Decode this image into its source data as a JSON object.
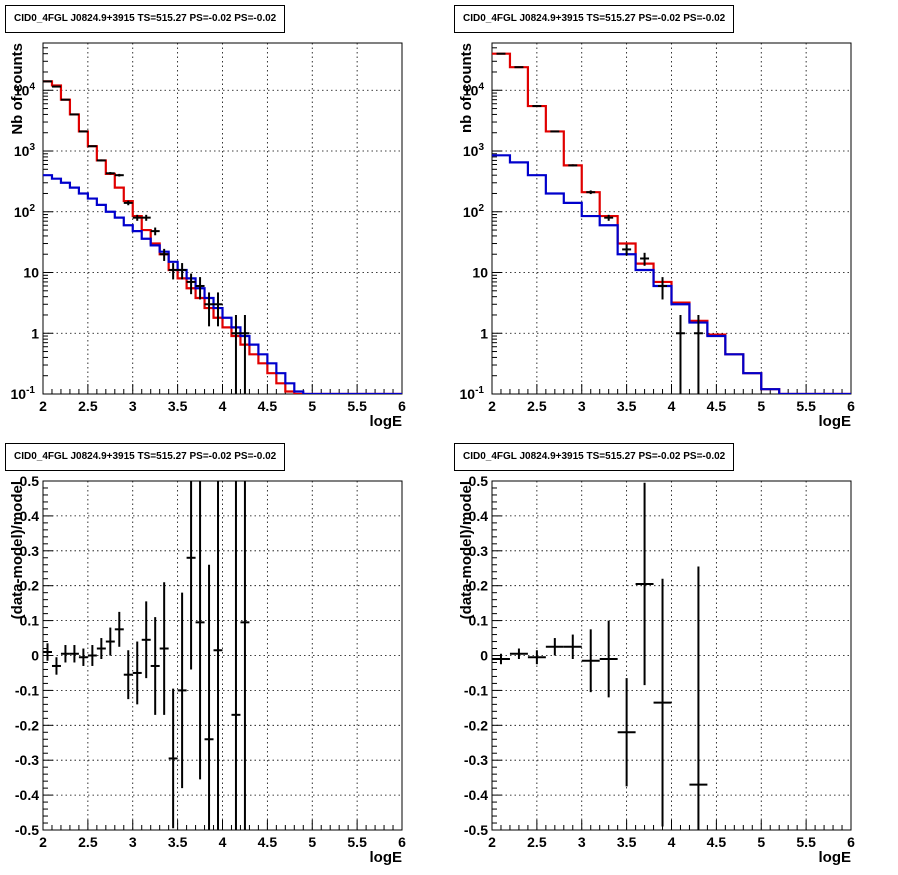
{
  "chart_data": [
    {
      "type": "line",
      "title": "CID0_4FGL J0824.9+3915 TS=515.27 PS=-0.02 PS=-0.02",
      "xlabel": "logE",
      "ylabel": "Nb of counts",
      "xlim": [
        2,
        6
      ],
      "ylim": [
        0.1,
        60000
      ],
      "yscale": "log",
      "grid": true,
      "x_ticks": [
        "2",
        "2.5",
        "3",
        "3.5",
        "4",
        "4.5",
        "5",
        "5.5",
        "6"
      ],
      "y_ticks": [
        "10^-1",
        "1",
        "10",
        "10^2",
        "10^3",
        "10^4"
      ],
      "series": [
        {
          "color": "#e00000",
          "kind": "step",
          "edges": [
            2.0,
            2.1,
            2.2,
            2.3,
            2.4,
            2.5,
            2.6,
            2.7,
            2.8,
            2.9,
            3.0,
            3.1,
            3.2,
            3.3,
            3.4,
            3.5,
            3.6,
            3.7,
            3.8,
            3.9,
            4.0,
            4.1,
            4.2,
            4.3,
            4.4,
            4.5,
            4.6,
            4.7,
            4.8,
            4.9,
            5.0,
            5.1,
            5.2,
            5.3,
            5.4,
            5.5,
            5.6,
            5.7,
            5.8,
            5.9,
            6.0
          ],
          "values": [
            14000,
            12000,
            7000,
            4000,
            2100,
            1200,
            700,
            420,
            250,
            150,
            85,
            50,
            30,
            20,
            11,
            8,
            5.5,
            3.8,
            2.6,
            1.8,
            1.25,
            0.9,
            0.65,
            0.45,
            0.32,
            0.22,
            0.15,
            0.11,
            0.1,
            0.1,
            0.1,
            0.1,
            0.1,
            0.1,
            0.1,
            0.1,
            0.1,
            0.1,
            0.1,
            0.1
          ]
        },
        {
          "color": "#0000cc",
          "kind": "step",
          "edges": [
            2.0,
            2.1,
            2.2,
            2.3,
            2.4,
            2.5,
            2.6,
            2.7,
            2.8,
            2.9,
            3.0,
            3.1,
            3.2,
            3.3,
            3.4,
            3.5,
            3.6,
            3.7,
            3.8,
            3.9,
            4.0,
            4.1,
            4.2,
            4.3,
            4.4,
            4.5,
            4.6,
            4.7,
            4.8,
            4.9,
            5.0,
            5.1,
            5.2,
            5.3,
            5.4,
            5.5,
            5.6,
            5.7,
            5.8,
            5.9,
            6.0
          ],
          "values": [
            400,
            350,
            300,
            250,
            200,
            165,
            130,
            100,
            80,
            60,
            48,
            36,
            28,
            22,
            15,
            11,
            8,
            5.5,
            3.8,
            2.6,
            1.8,
            1.25,
            0.9,
            0.65,
            0.45,
            0.32,
            0.22,
            0.15,
            0.11,
            0.1,
            0.1,
            0.1,
            0.1,
            0.1,
            0.1,
            0.1,
            0.1,
            0.1,
            0.1,
            0.1
          ]
        },
        {
          "color": "#000000",
          "kind": "points",
          "points": [
            {
              "x": 2.05,
              "y": 14000,
              "yerr_lo": 120,
              "yerr_hi": 120
            },
            {
              "x": 2.15,
              "y": 11500,
              "yerr_lo": 110,
              "yerr_hi": 110
            },
            {
              "x": 2.25,
              "y": 7000,
              "yerr_lo": 85,
              "yerr_hi": 85
            },
            {
              "x": 2.35,
              "y": 4000,
              "yerr_lo": 65,
              "yerr_hi": 65
            },
            {
              "x": 2.45,
              "y": 2100,
              "yerr_lo": 46,
              "yerr_hi": 46
            },
            {
              "x": 2.55,
              "y": 1200,
              "yerr_lo": 35,
              "yerr_hi": 35
            },
            {
              "x": 2.65,
              "y": 700,
              "yerr_lo": 27,
              "yerr_hi": 27
            },
            {
              "x": 2.75,
              "y": 430,
              "yerr_lo": 21,
              "yerr_hi": 21
            },
            {
              "x": 2.85,
              "y": 400,
              "yerr_lo": 20,
              "yerr_hi": 20
            },
            {
              "x": 2.95,
              "y": 140,
              "yerr_lo": 12,
              "yerr_hi": 12
            },
            {
              "x": 3.05,
              "y": 80,
              "yerr_lo": 9,
              "yerr_hi": 9
            },
            {
              "x": 3.15,
              "y": 80,
              "yerr_lo": 9,
              "yerr_hi": 9
            },
            {
              "x": 3.25,
              "y": 48,
              "yerr_lo": 7,
              "yerr_hi": 7
            },
            {
              "x": 3.35,
              "y": 20,
              "yerr_lo": 4.5,
              "yerr_hi": 4.5
            },
            {
              "x": 3.45,
              "y": 11,
              "yerr_lo": 3.3,
              "yerr_hi": 3.3
            },
            {
              "x": 3.55,
              "y": 11,
              "yerr_lo": 3.3,
              "yerr_hi": 3.3
            },
            {
              "x": 3.65,
              "y": 7,
              "yerr_lo": 2.6,
              "yerr_hi": 2.6
            },
            {
              "x": 3.75,
              "y": 6,
              "yerr_lo": 2.4,
              "yerr_hi": 2.4
            },
            {
              "x": 3.85,
              "y": 3,
              "yerr_lo": 1.7,
              "yerr_hi": 1.7
            },
            {
              "x": 3.95,
              "y": 3,
              "yerr_lo": 1.7,
              "yerr_hi": 1.7
            },
            {
              "x": 4.15,
              "y": 1,
              "yerr_lo": 0.999,
              "yerr_hi": 1.0
            },
            {
              "x": 4.25,
              "y": 1,
              "yerr_lo": 0.999,
              "yerr_hi": 1.0
            }
          ]
        }
      ]
    },
    {
      "type": "line",
      "title": "CID0_4FGL J0824.9+3915 TS=515.27 PS=-0.02 PS=-0.02",
      "xlabel": "logE",
      "ylabel": "nb of counts",
      "xlim": [
        2,
        6
      ],
      "ylim": [
        0.1,
        60000
      ],
      "yscale": "log",
      "grid": true,
      "x_ticks": [
        "2",
        "2.5",
        "3",
        "3.5",
        "4",
        "4.5",
        "5",
        "5.5",
        "6"
      ],
      "y_ticks": [
        "10^-1",
        "1",
        "10",
        "10^2",
        "10^3",
        "10^4"
      ],
      "series": [
        {
          "color": "#e00000",
          "kind": "step",
          "edges": [
            2.0,
            2.2,
            2.4,
            2.6,
            2.8,
            3.0,
            3.2,
            3.4,
            3.6,
            3.8,
            4.0,
            4.2,
            4.4,
            4.6,
            4.8,
            5.0,
            5.2,
            5.4,
            5.6,
            5.8,
            6.0
          ],
          "values": [
            40000,
            24000,
            5500,
            2100,
            580,
            210,
            85,
            30,
            14,
            7,
            3.2,
            1.6,
            0.95,
            0.45,
            0.22,
            0.12,
            0.1,
            0.1,
            0.1,
            0.1
          ]
        },
        {
          "color": "#0000cc",
          "kind": "step",
          "edges": [
            2.0,
            2.2,
            2.4,
            2.6,
            2.8,
            3.0,
            3.2,
            3.4,
            3.6,
            3.8,
            4.0,
            4.2,
            4.4,
            4.6,
            4.8,
            5.0,
            5.2,
            5.4,
            5.6,
            5.8,
            6.0
          ],
          "values": [
            850,
            650,
            400,
            200,
            140,
            85,
            60,
            20,
            11,
            6,
            3,
            1.5,
            0.9,
            0.45,
            0.22,
            0.12,
            0.1,
            0.1,
            0.1,
            0.1
          ]
        },
        {
          "color": "#000000",
          "kind": "points",
          "points": [
            {
              "x": 2.1,
              "y": 40000,
              "yerr_lo": 200,
              "yerr_hi": 200
            },
            {
              "x": 2.3,
              "y": 24000,
              "yerr_lo": 155,
              "yerr_hi": 155
            },
            {
              "x": 2.5,
              "y": 5500,
              "yerr_lo": 74,
              "yerr_hi": 74
            },
            {
              "x": 2.7,
              "y": 2100,
              "yerr_lo": 46,
              "yerr_hi": 46
            },
            {
              "x": 2.9,
              "y": 580,
              "yerr_lo": 24,
              "yerr_hi": 24
            },
            {
              "x": 3.1,
              "y": 210,
              "yerr_lo": 14.5,
              "yerr_hi": 14.5
            },
            {
              "x": 3.3,
              "y": 80,
              "yerr_lo": 9,
              "yerr_hi": 9
            },
            {
              "x": 3.5,
              "y": 24,
              "yerr_lo": 5,
              "yerr_hi": 5
            },
            {
              "x": 3.7,
              "y": 17,
              "yerr_lo": 4.1,
              "yerr_hi": 4.1
            },
            {
              "x": 3.9,
              "y": 6,
              "yerr_lo": 2.4,
              "yerr_hi": 2.4
            },
            {
              "x": 4.1,
              "y": 1,
              "yerr_lo": 0.999,
              "yerr_hi": 1.0
            },
            {
              "x": 4.3,
              "y": 1,
              "yerr_lo": 0.999,
              "yerr_hi": 1.0
            }
          ]
        }
      ]
    },
    {
      "type": "scatter",
      "title": "CID0_4FGL J0824.9+3915 TS=515.27 PS=-0.02 PS=-0.02",
      "xlabel": "logE",
      "ylabel": "(data-model)/model",
      "xlim": [
        2,
        6
      ],
      "ylim": [
        -0.5,
        0.5
      ],
      "grid": true,
      "x_ticks": [
        "2",
        "2.5",
        "3",
        "3.5",
        "4",
        "4.5",
        "5",
        "5.5",
        "6"
      ],
      "y_ticks": [
        "-0.5",
        "-0.4",
        "-0.3",
        "-0.2",
        "-0.1",
        "0",
        "0.1",
        "0.2",
        "0.3",
        "0.4",
        "0.5"
      ],
      "xbin": 0.1,
      "points": [
        {
          "x": 2.05,
          "y": 0.01,
          "yerr": 0.025
        },
        {
          "x": 2.15,
          "y": -0.03,
          "yerr": 0.025
        },
        {
          "x": 2.25,
          "y": 0.005,
          "yerr": 0.025
        },
        {
          "x": 2.35,
          "y": 0.005,
          "yerr": 0.025
        },
        {
          "x": 2.45,
          "y": -0.005,
          "yerr": 0.025
        },
        {
          "x": 2.55,
          "y": 0.0,
          "yerr": 0.03
        },
        {
          "x": 2.65,
          "y": 0.02,
          "yerr": 0.03
        },
        {
          "x": 2.75,
          "y": 0.04,
          "yerr": 0.04
        },
        {
          "x": 2.85,
          "y": 0.075,
          "yerr": 0.05
        },
        {
          "x": 2.95,
          "y": -0.055,
          "yerr": 0.07
        },
        {
          "x": 3.05,
          "y": -0.05,
          "yerr": 0.09
        },
        {
          "x": 3.15,
          "y": 0.045,
          "yerr": 0.11
        },
        {
          "x": 3.25,
          "y": -0.03,
          "yerr": 0.14
        },
        {
          "x": 3.35,
          "y": 0.02,
          "yerr": 0.19
        },
        {
          "x": 3.45,
          "y": -0.295,
          "yerr": 0.2
        },
        {
          "x": 3.55,
          "y": -0.1,
          "yerr": 0.28
        },
        {
          "x": 3.65,
          "y": 0.28,
          "yerr": 0.32
        },
        {
          "x": 3.75,
          "y": 0.095,
          "yerr": 0.45
        },
        {
          "x": 3.85,
          "y": -0.24,
          "yerr": 0.5
        },
        {
          "x": 3.95,
          "y": 0.015,
          "yerr": 0.6
        },
        {
          "x": 4.15,
          "y": -0.17,
          "yerr": 0.9
        },
        {
          "x": 4.25,
          "y": 0.095,
          "yerr": 1.0
        }
      ]
    },
    {
      "type": "scatter",
      "title": "CID0_4FGL J0824.9+3915 TS=515.27 PS=-0.02 PS=-0.02",
      "xlabel": "logE",
      "ylabel": "(data-model)/model",
      "xlim": [
        2,
        6
      ],
      "ylim": [
        -0.5,
        0.5
      ],
      "grid": true,
      "x_ticks": [
        "2",
        "2.5",
        "3",
        "3.5",
        "4",
        "4.5",
        "5",
        "5.5",
        "6"
      ],
      "y_ticks": [
        "-0.5",
        "-0.4",
        "-0.3",
        "-0.2",
        "-0.1",
        "0",
        "0.1",
        "0.2",
        "0.3",
        "0.4",
        "0.5"
      ],
      "xbin": 0.2,
      "points": [
        {
          "x": 2.1,
          "y": -0.01,
          "yerr": 0.015
        },
        {
          "x": 2.3,
          "y": 0.005,
          "yerr": 0.015
        },
        {
          "x": 2.5,
          "y": -0.005,
          "yerr": 0.02
        },
        {
          "x": 2.7,
          "y": 0.025,
          "yerr": 0.025
        },
        {
          "x": 2.9,
          "y": 0.025,
          "yerr": 0.035
        },
        {
          "x": 3.1,
          "y": -0.015,
          "yerr": 0.09
        },
        {
          "x": 3.3,
          "y": -0.01,
          "yerr": 0.11
        },
        {
          "x": 3.5,
          "y": -0.22,
          "yerr": 0.155
        },
        {
          "x": 3.7,
          "y": 0.205,
          "yerr": 0.29
        },
        {
          "x": 3.9,
          "y": -0.135,
          "yerr": 0.355
        },
        {
          "x": 4.3,
          "y": -0.37,
          "yerr": 0.625
        }
      ]
    }
  ]
}
